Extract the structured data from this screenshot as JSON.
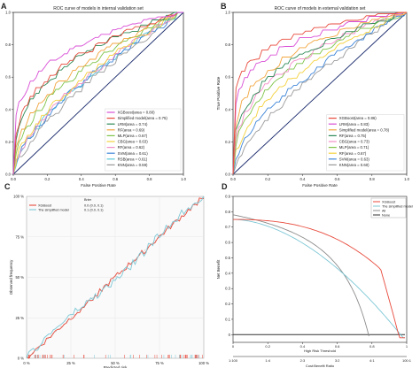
{
  "panel_letters": [
    "A",
    "B",
    "C",
    "D"
  ],
  "chart_data": [
    {
      "panel": "A",
      "type": "line",
      "title": "ROC curve of models in internal validation set",
      "xlabel": "False Positive Rate",
      "ylabel": "True Positive Rate",
      "xlim": [
        0,
        1
      ],
      "ylim": [
        0,
        1
      ],
      "xticks": [
        "0.0",
        "0.2",
        "0.4",
        "0.6",
        "0.8",
        "1.0"
      ],
      "yticks": [
        "0.0",
        "0.2",
        "0.4",
        "0.6",
        "0.8",
        "1.0"
      ],
      "legend_position": "lower-right",
      "reference_line": [
        [
          0,
          0
        ],
        [
          1,
          1
        ]
      ],
      "series": [
        {
          "name": "XGBoost(area = 0.80)",
          "color": "#d94fd6",
          "auc": 0.8
        },
        {
          "name": "Simplified model(area = 0.75)",
          "color": "#e84a3c",
          "auc": 0.75
        },
        {
          "name": "LRM(area = 0.74)",
          "color": "#2e8a57",
          "auc": 0.74
        },
        {
          "name": "RF(area = 0.69)",
          "color": "#f2a640",
          "auc": 0.69
        },
        {
          "name": "MLP(area = 0.67)",
          "color": "#7fc44a",
          "auc": 0.67
        },
        {
          "name": "CBG(area = 0.63)",
          "color": "#f4d13c",
          "auc": 0.63
        },
        {
          "name": "RF(area = 0.62)",
          "color": "#f28ec8",
          "auc": 0.62
        },
        {
          "name": "SVM(area = 0.61)",
          "color": "#3f86d8",
          "auc": 0.61
        },
        {
          "name": "RSB(area = 0.61)",
          "color": "#5bc9d9",
          "auc": 0.61
        },
        {
          "name": "KNN(area = 0.59)",
          "color": "#9a9a9a",
          "auc": 0.59
        }
      ]
    },
    {
      "panel": "B",
      "type": "line",
      "title": "ROC curve of models in external validation set",
      "xlabel": "False Positive Rate",
      "ylabel": "True Positive Rate",
      "xlim": [
        0,
        1
      ],
      "ylim": [
        0,
        1
      ],
      "xticks": [
        "0.0",
        "0.2",
        "0.4",
        "0.6",
        "0.8",
        "1.0"
      ],
      "yticks": [
        "0.0",
        "0.2",
        "0.4",
        "0.6",
        "0.8",
        "1.0"
      ],
      "legend_position": "lower-right",
      "reference_line": [
        [
          0,
          0
        ],
        [
          1,
          1
        ]
      ],
      "series": [
        {
          "name": "XGBoost(area = 0.86)",
          "color": "#e84a3c",
          "auc": 0.86
        },
        {
          "name": "LRM(area = 0.83)",
          "color": "#d94fd6",
          "auc": 0.83
        },
        {
          "name": "Simplified model(area = 0.78)",
          "color": "#f2a640",
          "auc": 0.78
        },
        {
          "name": "RF(area = 0.75)",
          "color": "#2e8a57",
          "auc": 0.75
        },
        {
          "name": "CBG(area = 0.73)",
          "color": "#f28ec8",
          "auc": 0.73
        },
        {
          "name": "MLP(area = 0.71)",
          "color": "#7fc44a",
          "auc": 0.71
        },
        {
          "name": "RF(area = 0.67)",
          "color": "#f4d13c",
          "auc": 0.67
        },
        {
          "name": "SVM(area = 0.63)",
          "color": "#3f86d8",
          "auc": 0.63
        },
        {
          "name": "KNN(area = 0.60)",
          "color": "#9a9a9a",
          "auc": 0.6
        }
      ]
    },
    {
      "panel": "C",
      "type": "line",
      "title": "",
      "xlabel": "Predicted risk",
      "ylabel": "Observed frequency",
      "xlim": [
        0,
        1
      ],
      "ylim": [
        0,
        1
      ],
      "xticks": [
        "0 %",
        "25 %",
        "50 %",
        "75 %",
        "100 %"
      ],
      "yticks": [
        "0 %",
        "25 %",
        "50 %",
        "75 %",
        "100 %"
      ],
      "legend_position": "top-left",
      "series": [
        {
          "name": "XGBoost",
          "color": "#e84a3c",
          "brier": "0.0 (0.0, 0.1)"
        },
        {
          "name": "The simplified model",
          "color": "#7ec8d6",
          "brier": "0.1 (0.0, 0.1)"
        }
      ],
      "legend_stat_header": "Brier",
      "legend_stats": [
        "0.0 (0.0, 0.1)",
        "0.1 (0.0, 0.1)"
      ]
    },
    {
      "panel": "D",
      "type": "line",
      "title": "",
      "xlabel": "High Risk Threshold",
      "ylabel": "Net Benefit",
      "secondary_xlabel": "Cost:Benefit Ratio",
      "xlim": [
        0,
        1
      ],
      "ylim": [
        -0.05,
        0.9
      ],
      "xticks": [
        "0",
        "0.2",
        "0.4",
        "0.6",
        "0.8",
        "1"
      ],
      "yticks": [
        "0",
        "0.1",
        "0.2",
        "0.3",
        "0.4",
        "0.5",
        "0.6",
        "0.7",
        "0.8",
        "0.9"
      ],
      "secondary_xticks": [
        "1:100",
        "1:4",
        "2:3",
        "3:2",
        "4:1",
        "100:1"
      ],
      "legend_position": "top-right",
      "prevalence": 0.78,
      "series": [
        {
          "name": "XGBoost",
          "color": "#e84a3c"
        },
        {
          "name": "The simplified model",
          "color": "#7ec8d6"
        },
        {
          "name": "All",
          "color": "#8c8c8c"
        },
        {
          "name": "None",
          "color": "#333333"
        }
      ]
    }
  ]
}
